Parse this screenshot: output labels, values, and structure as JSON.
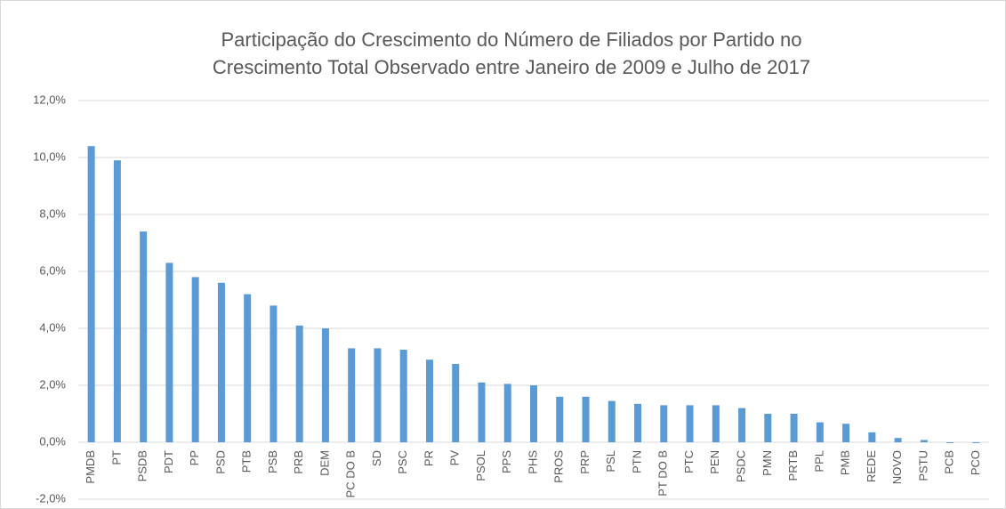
{
  "chart_data": {
    "type": "bar",
    "title": [
      "Participação do Crescimento do Número de Filiados por Partido no",
      "Crescimento Total Observado entre Janeiro de 2009 e Julho de 2017"
    ],
    "categories": [
      "PMDB",
      "PT",
      "PSDB",
      "PDT",
      "PP",
      "PSD",
      "PTB",
      "PSB",
      "PRB",
      "DEM",
      "PC DO B",
      "SD",
      "PSC",
      "PR",
      "PV",
      "PSOL",
      "PPS",
      "PHS",
      "PROS",
      "PRP",
      "PSL",
      "PTN",
      "PT DO B",
      "PTC",
      "PEN",
      "PSDC",
      "PMN",
      "PRTB",
      "PPL",
      "PMB",
      "REDE",
      "NOVO",
      "PSTU",
      "PCB",
      "PCO"
    ],
    "values": [
      10.4,
      9.9,
      7.4,
      6.3,
      5.8,
      5.6,
      5.2,
      4.8,
      4.1,
      4.0,
      3.3,
      3.3,
      3.25,
      2.9,
      2.75,
      2.1,
      2.05,
      2.0,
      1.6,
      1.6,
      1.45,
      1.35,
      1.3,
      1.3,
      1.3,
      1.2,
      1.0,
      1.0,
      0.7,
      0.65,
      0.35,
      0.15,
      0.08,
      -0.03,
      -0.03
    ],
    "color": "#5b9bd5",
    "ylim": [
      -2,
      12
    ],
    "yticks": [
      {
        "value": -2,
        "label": "-2,0%"
      },
      {
        "value": 0,
        "label": "0,0%"
      },
      {
        "value": 2,
        "label": "2,0%"
      },
      {
        "value": 4,
        "label": "4,0%"
      },
      {
        "value": 6,
        "label": "6,0%"
      },
      {
        "value": 8,
        "label": "8,0%"
      },
      {
        "value": 10,
        "label": "10,0%"
      },
      {
        "value": 12,
        "label": "12,0%"
      }
    ],
    "grid": true
  }
}
